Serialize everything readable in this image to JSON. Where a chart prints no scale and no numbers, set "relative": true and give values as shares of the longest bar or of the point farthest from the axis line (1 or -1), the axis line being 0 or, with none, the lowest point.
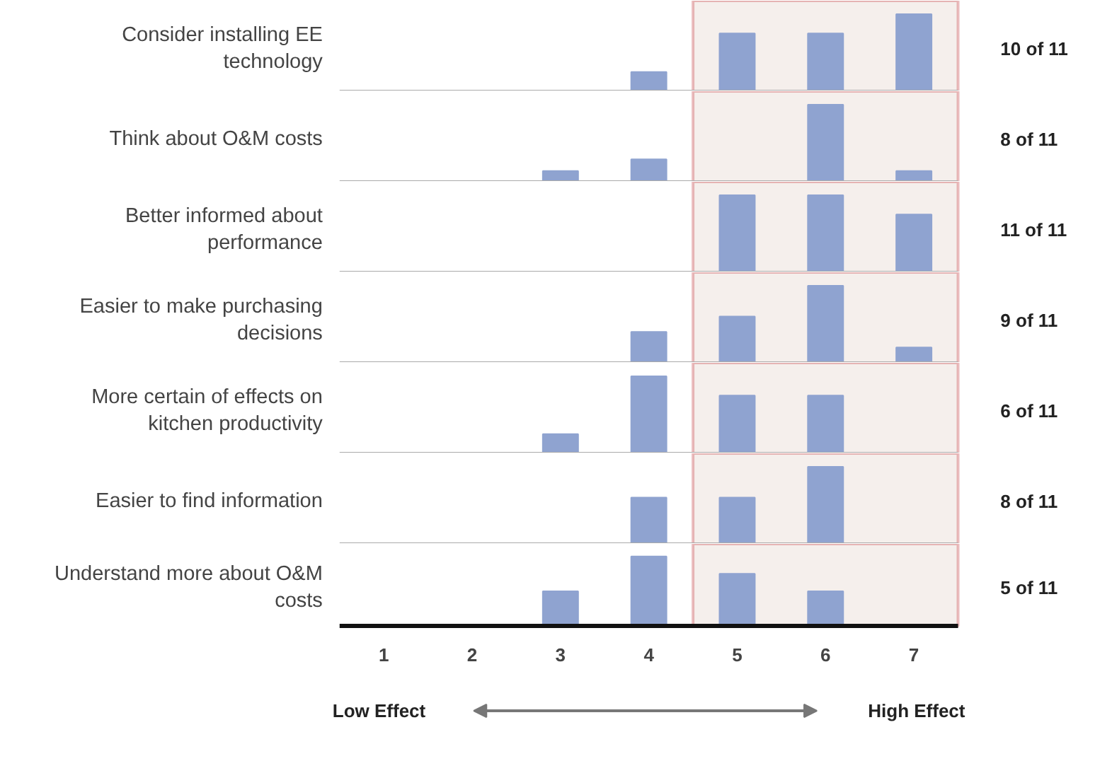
{
  "chart_data": [
    {
      "type": "bar",
      "title": "Consider installing EE technology",
      "categories": [
        "1",
        "2",
        "3",
        "4",
        "5",
        "6",
        "7"
      ],
      "values": [
        0,
        0,
        0,
        0.25,
        0.75,
        0.75,
        1
      ],
      "color": "#8fa3d0",
      "relative": true,
      "tick_labels": false,
      "bands": [
        {
          "axis": "x",
          "from": "5",
          "to": "7",
          "color": "#f5efec"
        }
      ],
      "annotations": [
        "10 of 11"
      ]
    },
    {
      "type": "bar",
      "title": "Think about O&M costs",
      "categories": [
        "1",
        "2",
        "3",
        "4",
        "5",
        "6",
        "7"
      ],
      "values": [
        0,
        0,
        0.14,
        0.29,
        0,
        1,
        0.14
      ],
      "color": "#8fa3d0",
      "relative": true,
      "tick_labels": false,
      "bands": [
        {
          "axis": "x",
          "from": "5",
          "to": "7",
          "color": "#f5efec"
        }
      ],
      "annotations": [
        "8 of 11"
      ]
    },
    {
      "type": "bar",
      "title": "Better informed about performance",
      "categories": [
        "1",
        "2",
        "3",
        "4",
        "5",
        "6",
        "7"
      ],
      "values": [
        0,
        0,
        0,
        0,
        1,
        1,
        0.75
      ],
      "color": "#8fa3d0",
      "relative": true,
      "tick_labels": false,
      "bands": [
        {
          "axis": "x",
          "from": "5",
          "to": "7",
          "color": "#f5efec"
        }
      ],
      "annotations": [
        "11 of 11"
      ]
    },
    {
      "type": "bar",
      "title": "Easier to make purchasing decisions",
      "categories": [
        "1",
        "2",
        "3",
        "4",
        "5",
        "6",
        "7"
      ],
      "values": [
        0,
        0,
        0,
        0.4,
        0.6,
        1,
        0.2
      ],
      "color": "#8fa3d0",
      "relative": true,
      "tick_labels": false,
      "bands": [
        {
          "axis": "x",
          "from": "5",
          "to": "7",
          "color": "#f5efec"
        }
      ],
      "annotations": [
        "9 of 11"
      ]
    },
    {
      "type": "bar",
      "title": "More certain of effects on kitchen productivity",
      "categories": [
        "1",
        "2",
        "3",
        "4",
        "5",
        "6",
        "7"
      ],
      "values": [
        0,
        0,
        0.25,
        1,
        0.75,
        0.75,
        0
      ],
      "color": "#8fa3d0",
      "relative": true,
      "tick_labels": false,
      "bands": [
        {
          "axis": "x",
          "from": "5",
          "to": "7",
          "color": "#f5efec"
        }
      ],
      "annotations": [
        "6 of 11"
      ]
    },
    {
      "type": "bar",
      "title": "Easier to find information",
      "categories": [
        "1",
        "2",
        "3",
        "4",
        "5",
        "6",
        "7"
      ],
      "values": [
        0,
        0,
        0,
        0.6,
        0.6,
        1,
        0
      ],
      "color": "#8fa3d0",
      "relative": true,
      "tick_labels": false,
      "bands": [
        {
          "axis": "x",
          "from": "5",
          "to": "7",
          "color": "#f5efec"
        }
      ],
      "annotations": [
        "8 of 11"
      ]
    },
    {
      "type": "bar",
      "title": "Understand more about O&M costs",
      "categories": [
        "1",
        "2",
        "3",
        "4",
        "5",
        "6",
        "7"
      ],
      "values": [
        0,
        0,
        0.5,
        1,
        0.75,
        0.5,
        0
      ],
      "color": "#8fa3d0",
      "relative": true,
      "tick_labels": "x",
      "bands": [
        {
          "axis": "x",
          "from": "5",
          "to": "7",
          "color": "#f5efec"
        }
      ],
      "annotations": [
        "5 of 11",
        "Low Effect",
        "High Effect"
      ]
    }
  ]
}
